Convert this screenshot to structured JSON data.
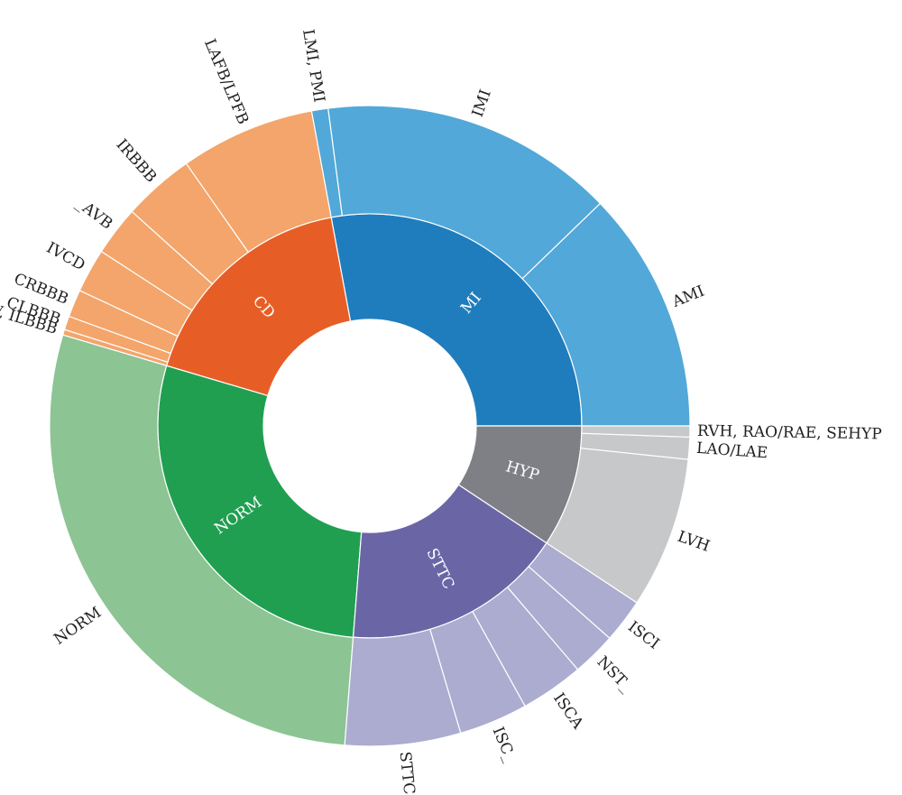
{
  "chart_data": {
    "type": "sunburst",
    "title": "",
    "unit": "degrees",
    "colors": {
      "MI": {
        "inner": "#1f7dbd",
        "outer": "#52a8d8"
      },
      "HYP": {
        "inner": "#7e8085",
        "outer": "#c7c8ca"
      },
      "STTC": {
        "inner": "#6a66a6",
        "outer": "#abaccf"
      },
      "NORM": {
        "inner": "#209f51",
        "outer": "#8cc494"
      },
      "CD": {
        "inner": "#e65e26",
        "outer": "#f3a56b"
      }
    },
    "inner": [
      {
        "name": "MI",
        "start": 0,
        "end": 100.5
      },
      {
        "name": "CD",
        "start": 100.5,
        "end": 163.5
      },
      {
        "name": "NORM",
        "start": 163.5,
        "end": 265.5
      },
      {
        "name": "STTC",
        "start": 265.5,
        "end": 326.5
      },
      {
        "name": "HYP",
        "start": 326.5,
        "end": 360
      }
    ],
    "outer": [
      {
        "name": "AMI",
        "parent": "MI",
        "start": 0,
        "end": 44
      },
      {
        "name": "IMI",
        "parent": "MI",
        "start": 44,
        "end": 97.5
      },
      {
        "name": "LMI, PMI",
        "parent": "MI",
        "start": 97.5,
        "end": 100.5
      },
      {
        "name": "LAFB/LPFB",
        "parent": "CD",
        "start": 100.5,
        "end": 125
      },
      {
        "name": "IRBBB",
        "parent": "CD",
        "start": 125,
        "end": 138
      },
      {
        "name": "_AVB",
        "parent": "CD",
        "start": 138,
        "end": 147
      },
      {
        "name": "IVCD",
        "parent": "CD",
        "start": 147,
        "end": 155
      },
      {
        "name": "CRBBB",
        "parent": "CD",
        "start": 155,
        "end": 160
      },
      {
        "name": "CLBBB",
        "parent": "CD",
        "start": 160,
        "end": 162.5
      },
      {
        "name": "WPW, ILBBB",
        "parent": "CD",
        "start": 162.5,
        "end": 163.5
      },
      {
        "name": "NORM",
        "parent": "NORM",
        "start": 163.5,
        "end": 265.5
      },
      {
        "name": "STTC",
        "parent": "STTC",
        "start": 265.5,
        "end": 286.5
      },
      {
        "name": "ISC_",
        "parent": "STTC",
        "start": 286.5,
        "end": 299
      },
      {
        "name": "ISCA",
        "parent": "STTC",
        "start": 299,
        "end": 310.5
      },
      {
        "name": "NST_",
        "parent": "STTC",
        "start": 310.5,
        "end": 318.5
      },
      {
        "name": "ISCI",
        "parent": "STTC",
        "start": 318.5,
        "end": 326.5
      },
      {
        "name": "LVH",
        "parent": "HYP",
        "start": 326.5,
        "end": 354
      },
      {
        "name": "LAO/LAE",
        "parent": "HYP",
        "start": 354,
        "end": 358
      },
      {
        "name": "RVH, RAO/RAE, SEHYP",
        "parent": "HYP",
        "start": 358,
        "end": 360
      }
    ]
  }
}
